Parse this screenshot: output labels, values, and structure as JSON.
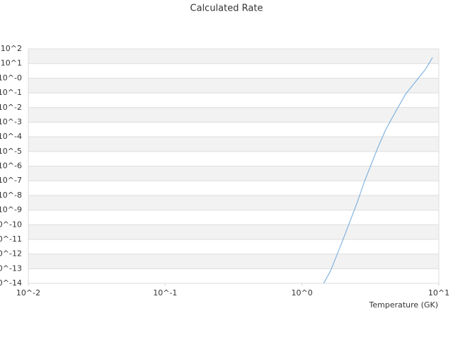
{
  "chart_data": {
    "type": "line",
    "title": "Calculated Rate",
    "x_label": "Temperature (GK)",
    "x_log": true,
    "y_log": true,
    "grid": "alternating-bands",
    "xlim": [
      0.01,
      10
    ],
    "ylim": [
      1e-14,
      100
    ],
    "xticks": [
      {
        "value": 0.01,
        "label": "10^-2"
      },
      {
        "value": 0.1,
        "label": "10^-1"
      },
      {
        "value": 1,
        "label": "10^0"
      },
      {
        "value": 10,
        "label": "10^1"
      }
    ],
    "yticks": [
      {
        "value": 1e-14,
        "label": "10^-14"
      },
      {
        "value": 1e-13,
        "label": "10^-13"
      },
      {
        "value": 1e-12,
        "label": "10^-12"
      },
      {
        "value": 1e-11,
        "label": "10^-11"
      },
      {
        "value": 1e-10,
        "label": "10^-10"
      },
      {
        "value": 1e-09,
        "label": "10^-9"
      },
      {
        "value": 1e-08,
        "label": "10^-8"
      },
      {
        "value": 1e-07,
        "label": "10^-7"
      },
      {
        "value": 1e-06,
        "label": "10^-6"
      },
      {
        "value": 1e-05,
        "label": "10^-5"
      },
      {
        "value": 0.0001,
        "label": "10^-4"
      },
      {
        "value": 0.001,
        "label": "10^-3"
      },
      {
        "value": 0.01,
        "label": "10^-2"
      },
      {
        "value": 0.1,
        "label": "10^-1"
      },
      {
        "value": 1,
        "label": "10^-0"
      },
      {
        "value": 10,
        "label": "10^1"
      },
      {
        "value": 100,
        "label": "10^2"
      }
    ],
    "x": [
      1.44,
      1.62,
      1.8,
      2.03,
      2.54,
      2.86,
      3.59,
      4.05,
      4.56,
      5.71,
      7.98,
      9.0
    ],
    "series": [
      {
        "color": "#6fa8dc",
        "values": [
          1e-14,
          7.4e-14,
          8.7e-13,
          1.5e-11,
          3.6e-09,
          9e-08,
          1.9e-05,
          0.00025,
          0.002,
          0.081,
          4.0,
          26
        ]
      }
    ]
  }
}
